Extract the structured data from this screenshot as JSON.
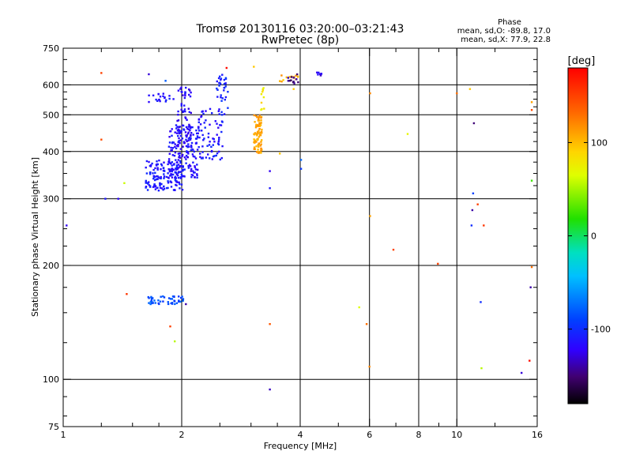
{
  "header": {
    "title": "Tromsø 20130116 03:20:00–03:21:43",
    "subtitle": "RwPretec (8p)"
  },
  "stats": {
    "label": "Phase",
    "line1": "mean, sd,O: -89.8, 17.0",
    "line2": "mean, sd,X:  77.9, 22.8"
  },
  "colorbar": {
    "unit_label": "[deg]",
    "range": [
      -180,
      180
    ],
    "ticks": [
      100,
      0,
      -100
    ]
  },
  "chart_data": {
    "type": "scatter",
    "title": "Tromsø 20130116 03:20:00–03:21:43",
    "subtitle": "RwPretec (8p)",
    "xlabel": "Frequency [MHz]",
    "ylabel": "Stationary phase Virtual Height [km]",
    "x_scale": "log",
    "y_scale": "log",
    "xlim": [
      1,
      16
    ],
    "ylim": [
      75,
      750
    ],
    "x_tick_labels": [
      1,
      2,
      4,
      6,
      8,
      10,
      16
    ],
    "x_minor_ticks": [
      1.25,
      1.5,
      1.75,
      2.5,
      3,
      3.5,
      5,
      7,
      9,
      12.5
    ],
    "y_tick_labels": [
      75,
      100,
      200,
      300,
      400,
      500,
      600,
      750
    ],
    "y_minor_ticks": [
      80,
      90,
      125,
      150,
      175,
      225,
      250,
      275,
      325,
      350,
      375,
      425,
      450,
      475,
      525,
      550,
      575,
      650,
      700
    ],
    "grid_x": [
      2,
      4,
      6,
      8,
      10
    ],
    "grid_y": [
      100,
      200,
      300,
      400,
      500,
      600
    ],
    "clusters": [
      {
        "fmin": 1.62,
        "fmax": 2.02,
        "hmin": 315,
        "hmax": 380,
        "phase": -110,
        "n": 160
      },
      {
        "fmin": 1.85,
        "fmax": 2.22,
        "hmin": 340,
        "hmax": 470,
        "phase": -115,
        "n": 150
      },
      {
        "fmin": 1.95,
        "fmax": 2.12,
        "hmin": 380,
        "hmax": 600,
        "phase": -118,
        "n": 70
      },
      {
        "fmin": 2.2,
        "fmax": 2.55,
        "hmin": 380,
        "hmax": 520,
        "phase": -112,
        "n": 70
      },
      {
        "fmin": 2.45,
        "fmax": 2.62,
        "hmin": 500,
        "hmax": 640,
        "phase": -105,
        "n": 35
      },
      {
        "fmin": 1.65,
        "fmax": 1.92,
        "hmin": 540,
        "hmax": 570,
        "phase": -112,
        "n": 20
      },
      {
        "fmin": 1.63,
        "fmax": 2.02,
        "hmin": 158,
        "hmax": 166,
        "phase": -85,
        "n": 50
      },
      {
        "fmin": 3.05,
        "fmax": 3.2,
        "hmin": 395,
        "hmax": 500,
        "phase": 110,
        "n": 80
      },
      {
        "fmin": 3.18,
        "fmax": 3.24,
        "hmin": 500,
        "hmax": 590,
        "phase": 80,
        "n": 10
      },
      {
        "fmin": 3.55,
        "fmax": 4.0,
        "hmin": 610,
        "hmax": 640,
        "phase": 105,
        "n": 15
      },
      {
        "fmin": 3.7,
        "fmax": 3.98,
        "hmin": 605,
        "hmax": 645,
        "phase": -145,
        "n": 12
      },
      {
        "fmin": 4.4,
        "fmax": 4.55,
        "hmin": 635,
        "hmax": 650,
        "phase": -125,
        "n": 8
      }
    ],
    "points": [
      {
        "f": 1.02,
        "h": 255,
        "phase": -125
      },
      {
        "f": 1.25,
        "h": 645,
        "phase": 150
      },
      {
        "f": 1.25,
        "h": 430,
        "phase": 145
      },
      {
        "f": 1.28,
        "h": 300,
        "phase": -110
      },
      {
        "f": 1.38,
        "h": 300,
        "phase": -120
      },
      {
        "f": 1.43,
        "h": 330,
        "phase": 60
      },
      {
        "f": 1.45,
        "h": 168,
        "phase": 155
      },
      {
        "f": 1.65,
        "h": 640,
        "phase": -130
      },
      {
        "f": 1.82,
        "h": 615,
        "phase": -80
      },
      {
        "f": 1.87,
        "h": 138,
        "phase": 150
      },
      {
        "f": 1.92,
        "h": 126,
        "phase": 55
      },
      {
        "f": 2.05,
        "h": 158,
        "phase": -140
      },
      {
        "f": 2.6,
        "h": 665,
        "phase": 175
      },
      {
        "f": 3.05,
        "h": 670,
        "phase": 95
      },
      {
        "f": 3.35,
        "h": 355,
        "phase": -125
      },
      {
        "f": 3.35,
        "h": 320,
        "phase": -110
      },
      {
        "f": 3.35,
        "h": 140,
        "phase": 140
      },
      {
        "f": 3.35,
        "h": 94,
        "phase": -135
      },
      {
        "f": 3.55,
        "h": 395,
        "phase": 95
      },
      {
        "f": 3.85,
        "h": 585,
        "phase": 95
      },
      {
        "f": 4.02,
        "h": 380,
        "phase": -75
      },
      {
        "f": 4.02,
        "h": 360,
        "phase": -95
      },
      {
        "f": 5.65,
        "h": 155,
        "phase": 65
      },
      {
        "f": 5.9,
        "h": 140,
        "phase": 130
      },
      {
        "f": 6.0,
        "h": 108,
        "phase": 120
      },
      {
        "f": 6.02,
        "h": 270,
        "phase": 110
      },
      {
        "f": 6.02,
        "h": 570,
        "phase": 120
      },
      {
        "f": 6.9,
        "h": 220,
        "phase": 150
      },
      {
        "f": 7.5,
        "h": 445,
        "phase": 70
      },
      {
        "f": 8.95,
        "h": 202,
        "phase": 150
      },
      {
        "f": 10.0,
        "h": 570,
        "phase": 130
      },
      {
        "f": 10.8,
        "h": 585,
        "phase": 95
      },
      {
        "f": 10.9,
        "h": 255,
        "phase": -100
      },
      {
        "f": 10.95,
        "h": 280,
        "phase": -140
      },
      {
        "f": 11.0,
        "h": 310,
        "phase": -90
      },
      {
        "f": 11.05,
        "h": 475,
        "phase": -150
      },
      {
        "f": 11.3,
        "h": 290,
        "phase": 150
      },
      {
        "f": 11.5,
        "h": 160,
        "phase": -100
      },
      {
        "f": 11.55,
        "h": 107,
        "phase": 55
      },
      {
        "f": 11.7,
        "h": 255,
        "phase": 155
      },
      {
        "f": 14.6,
        "h": 104,
        "phase": -130
      },
      {
        "f": 15.3,
        "h": 112,
        "phase": 175
      },
      {
        "f": 15.4,
        "h": 175,
        "phase": -140
      },
      {
        "f": 15.5,
        "h": 335,
        "phase": 25
      },
      {
        "f": 15.5,
        "h": 515,
        "phase": 145
      },
      {
        "f": 15.5,
        "h": 540,
        "phase": 110
      },
      {
        "f": 15.5,
        "h": 198,
        "phase": 130
      }
    ]
  }
}
